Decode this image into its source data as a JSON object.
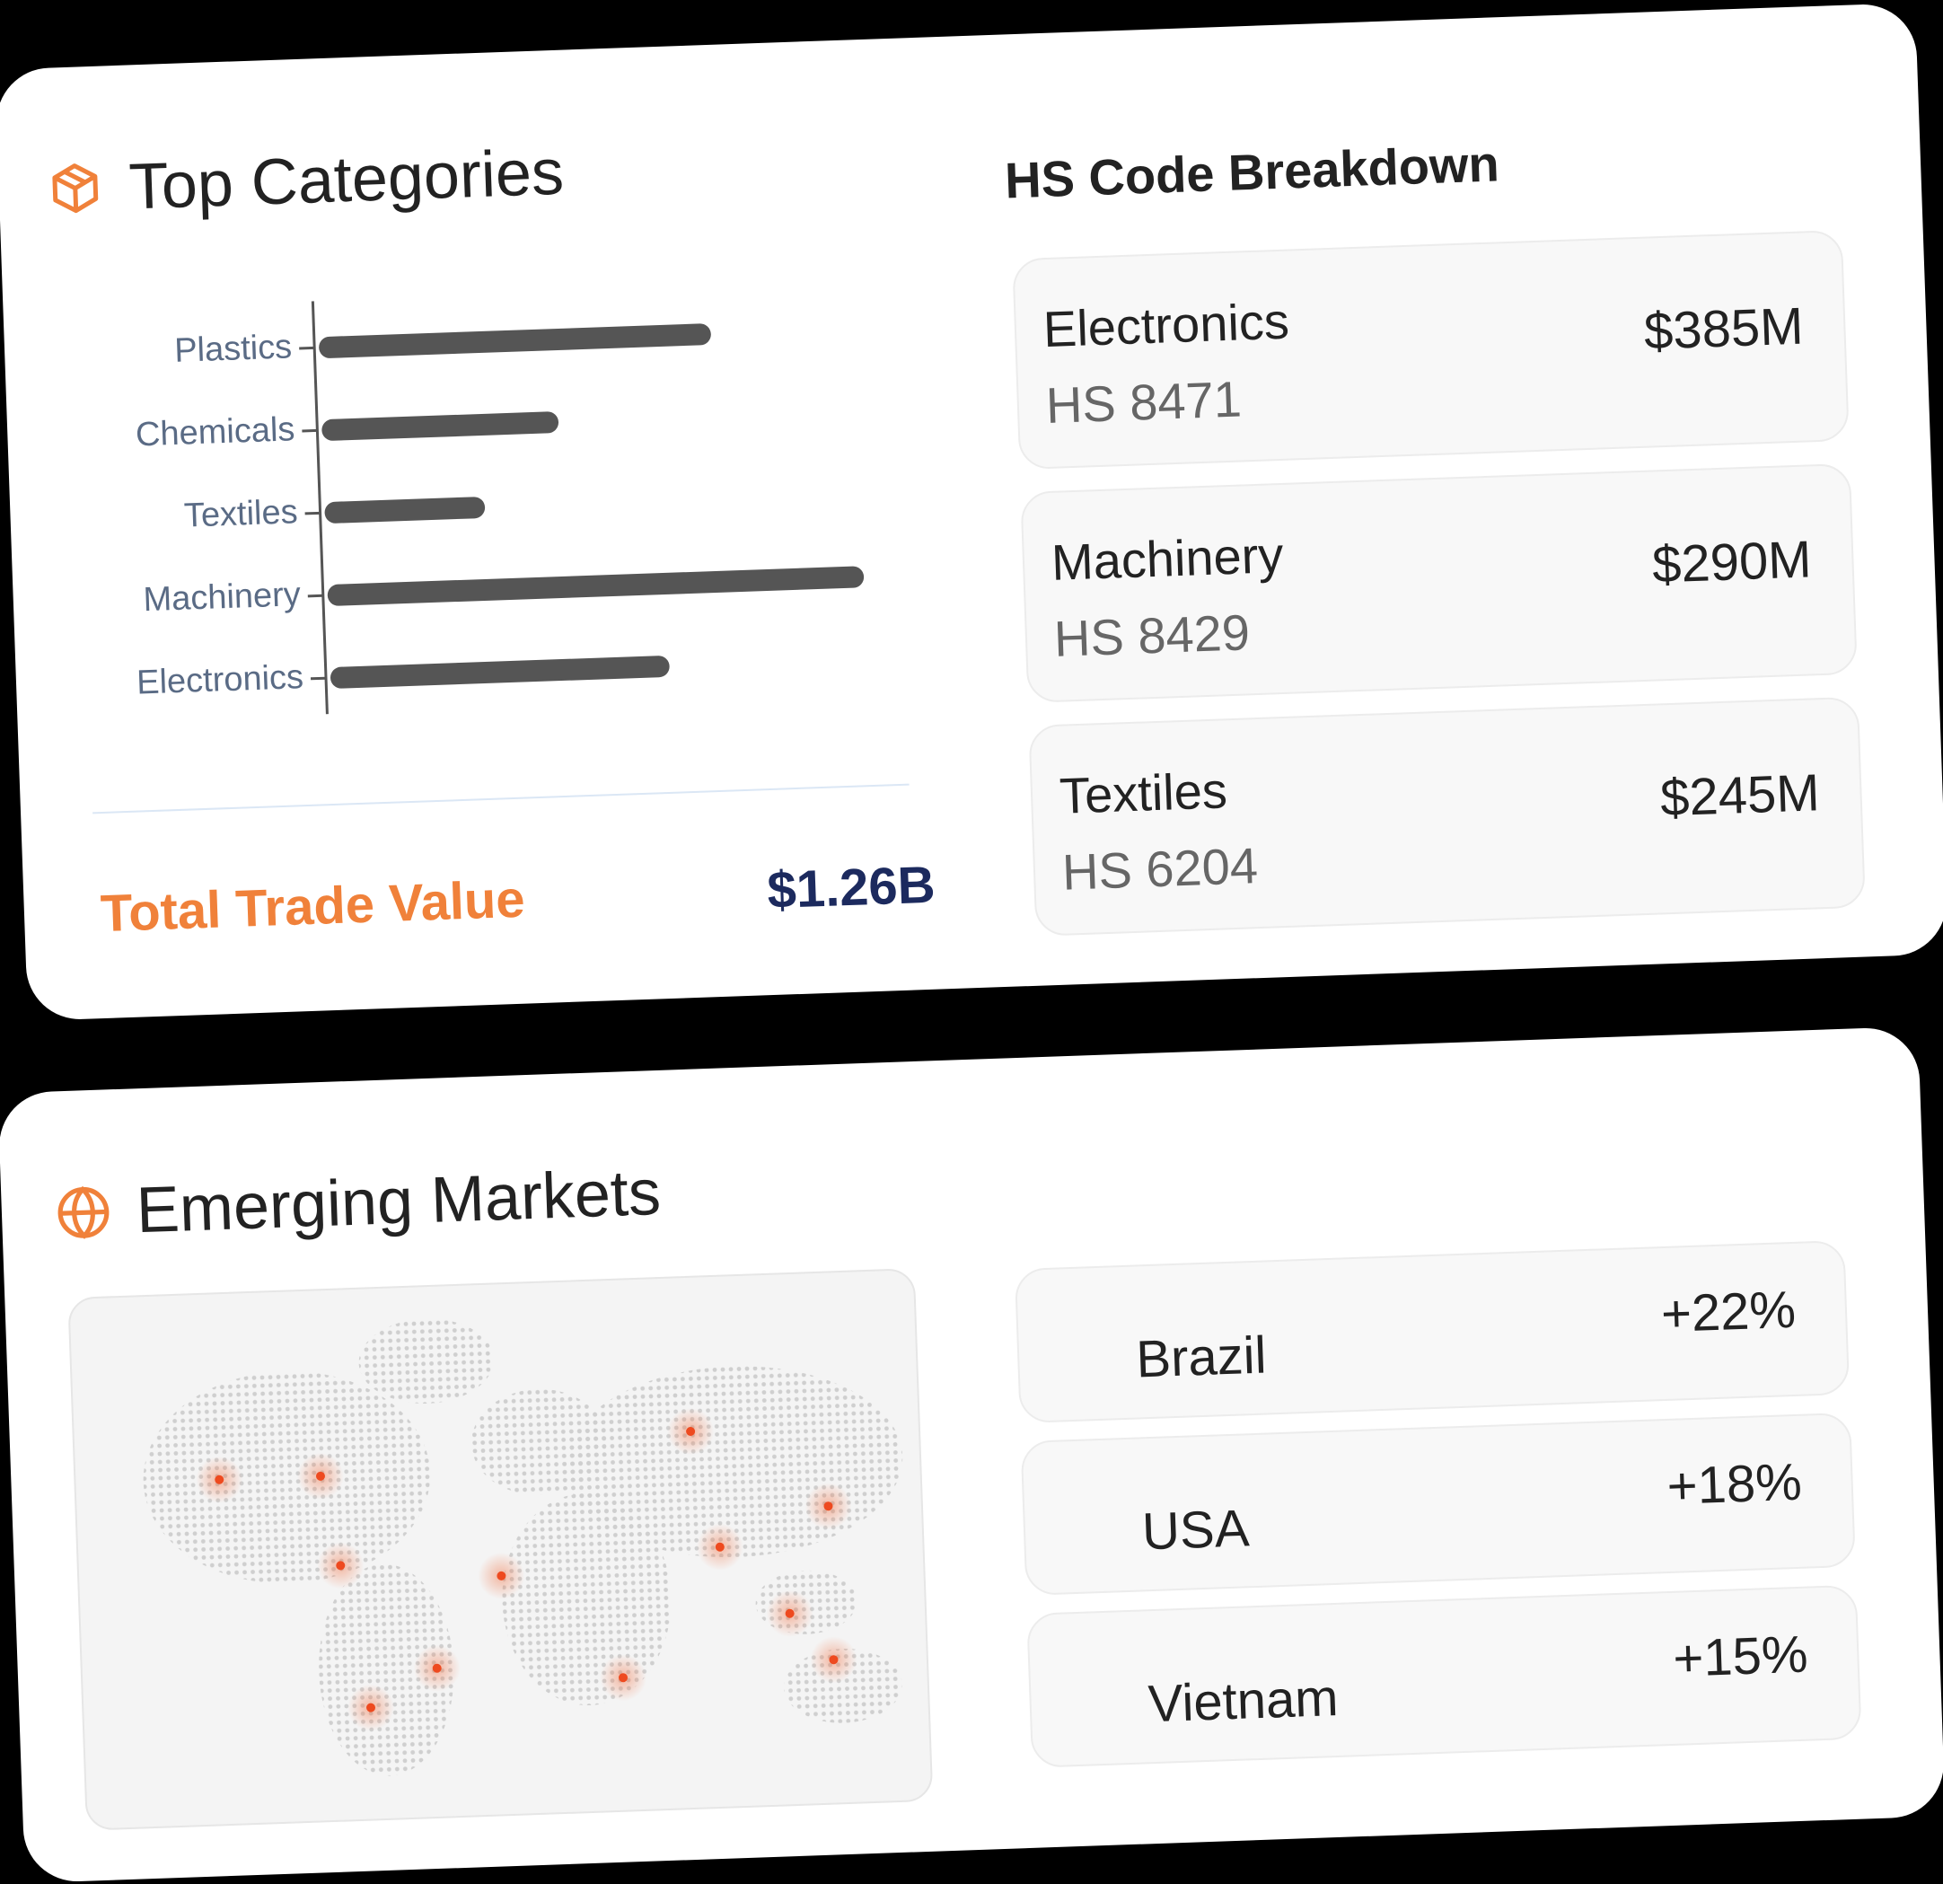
{
  "chart_data": {
    "type": "bar",
    "orientation": "horizontal",
    "title": "Top Categories",
    "categories": [
      "Plastics",
      "Chemicals",
      "Textiles",
      "Machinery",
      "Electronics"
    ],
    "values": [
      318,
      192,
      130,
      435,
      275
    ],
    "color": "#555555",
    "xlim": [
      0,
      460
    ]
  },
  "total": {
    "label": "Total Trade Value",
    "value": "$1.26B"
  },
  "hs_breakdown": {
    "title": "HS Code Breakdown",
    "items": [
      {
        "name": "Electronics",
        "code": "HS 8471",
        "value": "$385M"
      },
      {
        "name": "Machinery",
        "code": "HS 8429",
        "value": "$290M"
      },
      {
        "name": "Textiles",
        "code": "HS 6204",
        "value": "$245M"
      }
    ]
  },
  "emerging_markets": {
    "title": "Emerging Markets",
    "items": [
      {
        "name": "Brazil",
        "growth": "+22%"
      },
      {
        "name": "USA",
        "growth": "+18%"
      },
      {
        "name": "Vietnam",
        "growth": "+15%"
      }
    ]
  }
}
